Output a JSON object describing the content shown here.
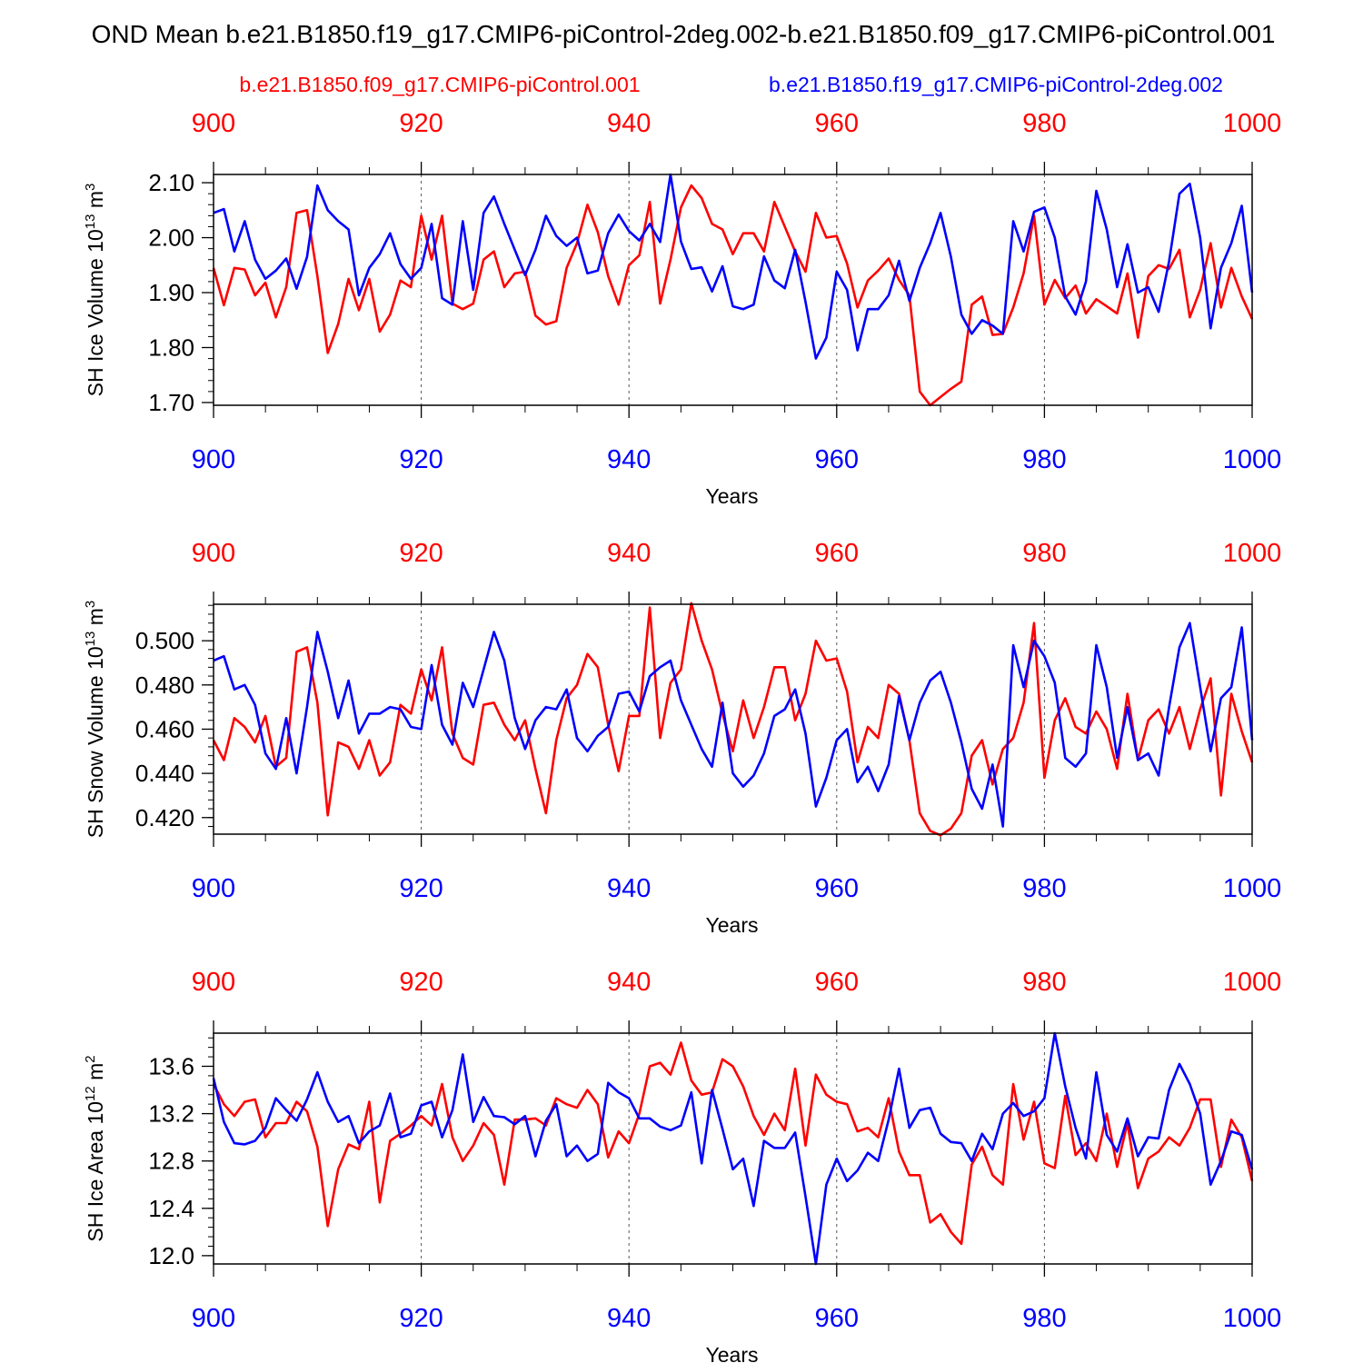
{
  "figure": {
    "title": "OND Mean b.e21.B1850.f19_g17.CMIP6-piControl-2deg.002-b.e21.B1850.f09_g17.CMIP6-piControl.001",
    "legend_red": "b.e21.B1850.f09_g17.CMIP6-piControl.001",
    "legend_blue": "b.e21.B1850.f19_g17.CMIP6-piControl-2deg.002",
    "colors": {
      "red": "#ff0000",
      "blue": "#0000ff",
      "axis": "#000000"
    }
  },
  "chart_data": [
    {
      "type": "line",
      "title": "",
      "xlabel": "Years",
      "ylabel": "SH Ice Volume 10^13 m^3",
      "ylabel_main": "SH Ice Volume 10",
      "ylabel_exp": "13",
      "ylabel_unit": " m",
      "ylabel_unit_exp": "3",
      "xlim": [
        900,
        1000
      ],
      "ylim": [
        1.695,
        2.115
      ],
      "x_start": 900,
      "xticks": [
        "900",
        "920",
        "940",
        "960",
        "980",
        "1000"
      ],
      "yticks": [
        "1.70",
        "1.80",
        "1.90",
        "2.00",
        "2.10"
      ],
      "series": [
        {
          "name": "b.e21.B1850.f09_g17.CMIP6-piControl.001",
          "color": "#ff0000",
          "values": [
            1.945,
            1.877,
            1.945,
            1.942,
            1.895,
            1.918,
            1.855,
            1.91,
            2.045,
            2.05,
            1.93,
            1.79,
            1.843,
            1.925,
            1.868,
            1.925,
            1.829,
            1.86,
            1.922,
            1.91,
            2.04,
            1.96,
            2.04,
            1.88,
            1.87,
            1.88,
            1.96,
            1.975,
            1.91,
            1.935,
            1.938,
            1.858,
            1.842,
            1.848,
            1.945,
            1.99,
            2.06,
            2.01,
            1.93,
            1.878,
            1.95,
            1.968,
            2.065,
            1.88,
            1.96,
            2.055,
            2.095,
            2.072,
            2.025,
            2.015,
            1.97,
            2.008,
            2.008,
            1.975,
            2.065,
            2.02,
            1.975,
            1.938,
            2.045,
            2.0,
            2.003,
            1.953,
            1.873,
            1.922,
            1.94,
            1.962,
            1.923,
            1.895,
            1.72,
            1.695,
            1.71,
            1.725,
            1.738,
            1.878,
            1.893,
            1.823,
            1.825,
            1.873,
            1.935,
            2.04,
            1.878,
            1.923,
            1.89,
            1.913,
            1.862,
            1.888,
            1.875,
            1.862,
            1.935,
            1.818,
            1.93,
            1.95,
            1.943,
            1.978,
            1.855,
            1.905,
            1.99,
            1.873,
            1.945,
            1.893,
            1.852
          ]
        },
        {
          "name": "b.e21.B1850.f19_g17.CMIP6-piControl-2deg.002",
          "color": "#0000ff",
          "values": [
            2.045,
            2.052,
            1.975,
            2.03,
            1.96,
            1.925,
            1.94,
            1.962,
            1.907,
            1.965,
            2.095,
            2.05,
            2.03,
            2.015,
            1.895,
            1.945,
            1.97,
            2.008,
            1.952,
            1.925,
            1.945,
            2.025,
            1.89,
            1.878,
            2.03,
            1.905,
            2.045,
            2.075,
            2.025,
            1.978,
            1.932,
            1.978,
            2.04,
            2.003,
            1.985,
            2.0,
            1.935,
            1.94,
            2.008,
            2.042,
            2.012,
            1.995,
            2.025,
            1.992,
            2.115,
            1.993,
            1.943,
            1.946,
            1.902,
            1.948,
            1.875,
            1.87,
            1.878,
            1.966,
            1.922,
            1.908,
            1.978,
            1.883,
            1.78,
            1.818,
            1.938,
            1.905,
            1.795,
            1.87,
            1.87,
            1.895,
            1.958,
            1.885,
            1.945,
            1.99,
            2.045,
            1.965,
            1.86,
            1.825,
            1.85,
            1.84,
            1.825,
            2.03,
            1.975,
            2.047,
            2.055,
            2.0,
            1.893,
            1.86,
            1.92,
            2.085,
            2.015,
            1.91,
            1.988,
            1.9,
            1.91,
            1.865,
            1.957,
            2.08,
            2.098,
            2.0,
            1.835,
            1.945,
            1.99,
            2.058,
            1.9
          ]
        }
      ]
    },
    {
      "type": "line",
      "title": "",
      "xlabel": "Years",
      "ylabel": "SH Snow Volume 10^13 m^3",
      "ylabel_main": "SH Snow Volume 10",
      "ylabel_exp": "13",
      "ylabel_unit": " m",
      "ylabel_unit_exp": "3",
      "xlim": [
        900,
        1000
      ],
      "ylim": [
        0.4125,
        0.5165
      ],
      "x_start": 900,
      "xticks": [
        "900",
        "920",
        "940",
        "960",
        "980",
        "1000"
      ],
      "yticks": [
        "0.420",
        "0.440",
        "0.460",
        "0.480",
        "0.500"
      ],
      "series": [
        {
          "name": "b.e21.B1850.f09_g17.CMIP6-piControl.001",
          "color": "#ff0000",
          "values": [
            0.455,
            0.446,
            0.465,
            0.461,
            0.454,
            0.466,
            0.443,
            0.447,
            0.495,
            0.497,
            0.472,
            0.421,
            0.454,
            0.452,
            0.442,
            0.455,
            0.439,
            0.445,
            0.471,
            0.467,
            0.487,
            0.473,
            0.497,
            0.458,
            0.447,
            0.444,
            0.471,
            0.472,
            0.462,
            0.455,
            0.464,
            0.442,
            0.422,
            0.455,
            0.474,
            0.48,
            0.494,
            0.488,
            0.462,
            0.441,
            0.466,
            0.466,
            0.515,
            0.456,
            0.481,
            0.487,
            0.517,
            0.5,
            0.487,
            0.467,
            0.45,
            0.473,
            0.456,
            0.47,
            0.488,
            0.488,
            0.464,
            0.476,
            0.5,
            0.491,
            0.492,
            0.477,
            0.445,
            0.461,
            0.456,
            0.48,
            0.476,
            0.455,
            0.422,
            0.414,
            0.412,
            0.415,
            0.422,
            0.448,
            0.455,
            0.435,
            0.451,
            0.456,
            0.472,
            0.508,
            0.438,
            0.464,
            0.474,
            0.461,
            0.458,
            0.468,
            0.46,
            0.442,
            0.476,
            0.446,
            0.464,
            0.469,
            0.458,
            0.47,
            0.451,
            0.469,
            0.483,
            0.43,
            0.476,
            0.459,
            0.445
          ]
        },
        {
          "name": "b.e21.B1850.f19_g17.CMIP6-piControl-2deg.002",
          "color": "#0000ff",
          "values": [
            0.491,
            0.493,
            0.478,
            0.48,
            0.471,
            0.449,
            0.442,
            0.465,
            0.44,
            0.47,
            0.504,
            0.486,
            0.465,
            0.482,
            0.458,
            0.467,
            0.467,
            0.47,
            0.469,
            0.461,
            0.46,
            0.489,
            0.462,
            0.453,
            0.481,
            0.47,
            0.487,
            0.504,
            0.491,
            0.465,
            0.451,
            0.464,
            0.47,
            0.469,
            0.478,
            0.456,
            0.45,
            0.457,
            0.461,
            0.476,
            0.477,
            0.468,
            0.484,
            0.488,
            0.491,
            0.473,
            0.462,
            0.451,
            0.443,
            0.472,
            0.44,
            0.434,
            0.439,
            0.449,
            0.466,
            0.469,
            0.478,
            0.458,
            0.425,
            0.438,
            0.455,
            0.46,
            0.436,
            0.443,
            0.432,
            0.444,
            0.475,
            0.455,
            0.472,
            0.482,
            0.486,
            0.472,
            0.454,
            0.433,
            0.424,
            0.444,
            0.416,
            0.498,
            0.479,
            0.5,
            0.493,
            0.481,
            0.447,
            0.443,
            0.449,
            0.498,
            0.479,
            0.447,
            0.47,
            0.446,
            0.449,
            0.439,
            0.47,
            0.497,
            0.508,
            0.479,
            0.45,
            0.474,
            0.479,
            0.506,
            0.455
          ]
        }
      ]
    },
    {
      "type": "line",
      "title": "",
      "xlabel": "Years",
      "ylabel": "SH Ice Area 10^12 m^2",
      "ylabel_main": "SH Ice Area 10",
      "ylabel_exp": "12",
      "ylabel_unit": " m",
      "ylabel_unit_exp": "2",
      "xlim": [
        900,
        1000
      ],
      "ylim": [
        11.93,
        13.88
      ],
      "x_start": 900,
      "xticks": [
        "900",
        "920",
        "940",
        "960",
        "980",
        "1000"
      ],
      "yticks": [
        "12.0",
        "12.4",
        "12.8",
        "13.2",
        "13.6"
      ],
      "series": [
        {
          "name": "b.e21.B1850.f09_g17.CMIP6-piControl.001",
          "color": "#ff0000",
          "values": [
            13.45,
            13.28,
            13.18,
            13.3,
            13.32,
            13.0,
            13.12,
            13.12,
            13.3,
            13.22,
            12.92,
            12.25,
            12.73,
            12.94,
            12.9,
            13.3,
            12.45,
            12.97,
            13.03,
            13.1,
            13.18,
            13.1,
            13.45,
            13.0,
            12.8,
            12.93,
            13.12,
            13.02,
            12.6,
            13.15,
            13.15,
            13.16,
            13.1,
            13.33,
            13.28,
            13.25,
            13.4,
            13.28,
            12.83,
            13.05,
            12.95,
            13.2,
            13.6,
            13.63,
            13.53,
            13.8,
            13.48,
            13.36,
            13.38,
            13.66,
            13.6,
            13.43,
            13.18,
            13.02,
            13.2,
            13.06,
            13.58,
            12.93,
            13.53,
            13.36,
            13.3,
            13.28,
            13.05,
            13.08,
            13.0,
            13.33,
            12.88,
            12.68,
            12.68,
            12.28,
            12.35,
            12.2,
            12.1,
            12.77,
            12.92,
            12.68,
            12.6,
            13.45,
            12.98,
            13.3,
            12.78,
            12.74,
            13.35,
            12.85,
            12.95,
            12.8,
            13.2,
            12.75,
            13.12,
            12.57,
            12.82,
            12.88,
            13.0,
            12.93,
            13.08,
            13.32,
            13.32,
            12.75,
            13.15,
            13.0,
            12.63
          ]
        },
        {
          "name": "b.e21.B1850.f19_g17.CMIP6-piControl-2deg.002",
          "color": "#0000ff",
          "values": [
            13.5,
            13.13,
            12.95,
            12.94,
            12.97,
            13.08,
            13.33,
            13.23,
            13.14,
            13.32,
            13.55,
            13.3,
            13.13,
            13.18,
            12.95,
            13.05,
            13.1,
            13.37,
            13.0,
            13.03,
            13.27,
            13.3,
            13.0,
            13.23,
            13.7,
            13.13,
            13.34,
            13.18,
            13.17,
            13.11,
            13.18,
            12.84,
            13.14,
            13.28,
            12.84,
            12.93,
            12.8,
            12.86,
            13.46,
            13.38,
            13.33,
            13.16,
            13.16,
            13.09,
            13.06,
            13.1,
            13.38,
            12.78,
            13.4,
            13.07,
            12.73,
            12.82,
            12.42,
            12.97,
            12.91,
            12.91,
            13.04,
            12.5,
            11.93,
            12.6,
            12.82,
            12.63,
            12.72,
            12.87,
            12.8,
            13.15,
            13.58,
            13.08,
            13.23,
            13.25,
            13.03,
            12.96,
            12.95,
            12.8,
            13.03,
            12.9,
            13.2,
            13.29,
            13.18,
            13.22,
            13.33,
            13.88,
            13.43,
            13.08,
            12.82,
            13.55,
            13.02,
            12.88,
            13.16,
            12.84,
            13.0,
            12.99,
            13.4,
            13.62,
            13.45,
            13.2,
            12.6,
            12.8,
            13.05,
            13.02,
            12.73
          ]
        }
      ]
    }
  ]
}
